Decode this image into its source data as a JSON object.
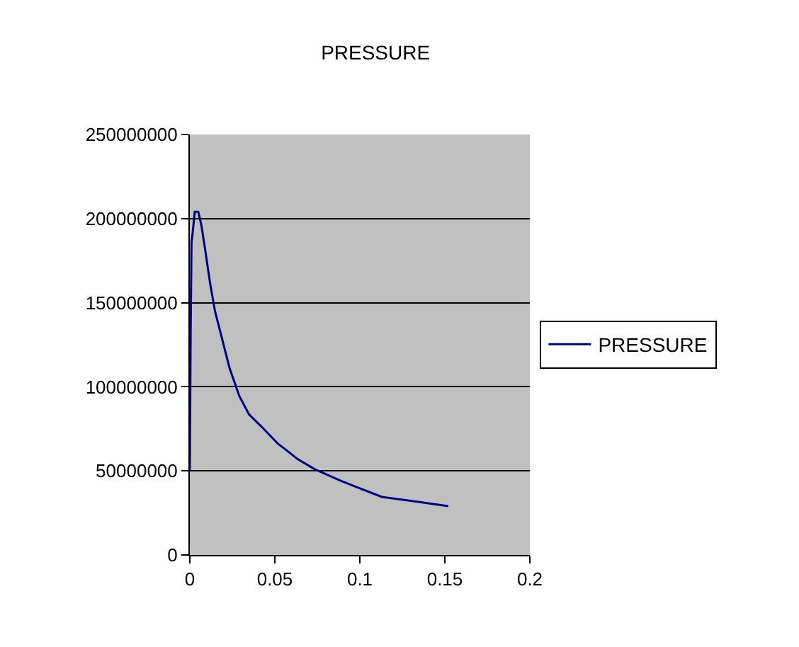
{
  "chart_data": {
    "type": "line",
    "title": "PRESSURE",
    "x": [
      0,
      0.0005,
      0.001,
      0.0015,
      0.0029,
      0.005,
      0.0068,
      0.0091,
      0.012,
      0.0148,
      0.0191,
      0.0234,
      0.0291,
      0.0348,
      0.0434,
      0.052,
      0.056,
      0.0634,
      0.0735,
      0.089,
      0.099,
      0.113,
      0.133,
      0.152
    ],
    "series": [
      {
        "name": "PRESSURE",
        "color": "#000080",
        "values": [
          50000000,
          134000000,
          186000000,
          190000000,
          204000000,
          204000000,
          196000000,
          181000000,
          161000000,
          145000000,
          128000000,
          111000000,
          94500000,
          83600000,
          75000000,
          66000000,
          63000000,
          57000000,
          51000000,
          44000000,
          40000000,
          34500000,
          31800000,
          29000000
        ]
      }
    ],
    "xlim": [
      0,
      0.2
    ],
    "xticks": [
      0,
      0.05,
      0.1,
      0.15,
      0.2
    ],
    "ylim": [
      0,
      250000000
    ],
    "yticks": [
      0,
      50000000,
      100000000,
      150000000,
      200000000,
      250000000
    ],
    "grid": "y",
    "legend": "right",
    "marker": "none",
    "line_style": "solid"
  }
}
